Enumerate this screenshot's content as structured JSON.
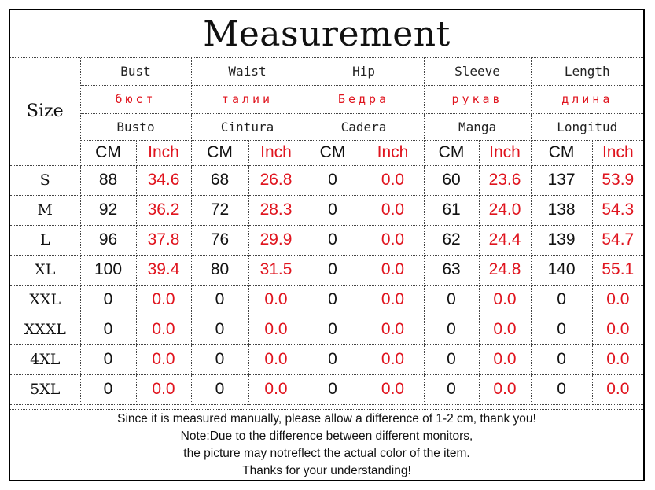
{
  "title": "Measurement",
  "size_header": "Size",
  "columns": [
    {
      "en": "Bust",
      "ru": "бюст",
      "es": "Busto"
    },
    {
      "en": "Waist",
      "ru": "талии",
      "es": "Cintura"
    },
    {
      "en": "Hip",
      "ru": "Бедра",
      "es": "Cadera"
    },
    {
      "en": "Sleeve",
      "ru": "рукав",
      "es": "Manga"
    },
    {
      "en": "Length",
      "ru": "длина",
      "es": "Longitud"
    }
  ],
  "units": {
    "cm": "CM",
    "inch": "Inch"
  },
  "rows": [
    {
      "size": "S",
      "values": [
        [
          "88",
          "34.6"
        ],
        [
          "68",
          "26.8"
        ],
        [
          "0",
          "0.0"
        ],
        [
          "60",
          "23.6"
        ],
        [
          "137",
          "53.9"
        ]
      ]
    },
    {
      "size": "M",
      "values": [
        [
          "92",
          "36.2"
        ],
        [
          "72",
          "28.3"
        ],
        [
          "0",
          "0.0"
        ],
        [
          "61",
          "24.0"
        ],
        [
          "138",
          "54.3"
        ]
      ]
    },
    {
      "size": "L",
      "values": [
        [
          "96",
          "37.8"
        ],
        [
          "76",
          "29.9"
        ],
        [
          "0",
          "0.0"
        ],
        [
          "62",
          "24.4"
        ],
        [
          "139",
          "54.7"
        ]
      ]
    },
    {
      "size": "XL",
      "values": [
        [
          "100",
          "39.4"
        ],
        [
          "80",
          "31.5"
        ],
        [
          "0",
          "0.0"
        ],
        [
          "63",
          "24.8"
        ],
        [
          "140",
          "55.1"
        ]
      ]
    },
    {
      "size": "XXL",
      "values": [
        [
          "0",
          "0.0"
        ],
        [
          "0",
          "0.0"
        ],
        [
          "0",
          "0.0"
        ],
        [
          "0",
          "0.0"
        ],
        [
          "0",
          "0.0"
        ]
      ]
    },
    {
      "size": "XXXL",
      "values": [
        [
          "0",
          "0.0"
        ],
        [
          "0",
          "0.0"
        ],
        [
          "0",
          "0.0"
        ],
        [
          "0",
          "0.0"
        ],
        [
          "0",
          "0.0"
        ]
      ]
    },
    {
      "size": "4XL",
      "values": [
        [
          "0",
          "0.0"
        ],
        [
          "0",
          "0.0"
        ],
        [
          "0",
          "0.0"
        ],
        [
          "0",
          "0.0"
        ],
        [
          "0",
          "0.0"
        ]
      ]
    },
    {
      "size": "5XL",
      "values": [
        [
          "0",
          "0.0"
        ],
        [
          "0",
          "0.0"
        ],
        [
          "0",
          "0.0"
        ],
        [
          "0",
          "0.0"
        ],
        [
          "0",
          "0.0"
        ]
      ]
    }
  ],
  "footer": [
    "Since it is measured manually, please allow a difference of 1-2 cm, thank you!",
    "Note:Due to the difference between different monitors,",
    "the picture may notreflect the actual color of the item.",
    "Thanks for your understanding!"
  ],
  "colors": {
    "accent_red": "#e0141e",
    "text": "#111111",
    "border": "#000000"
  }
}
